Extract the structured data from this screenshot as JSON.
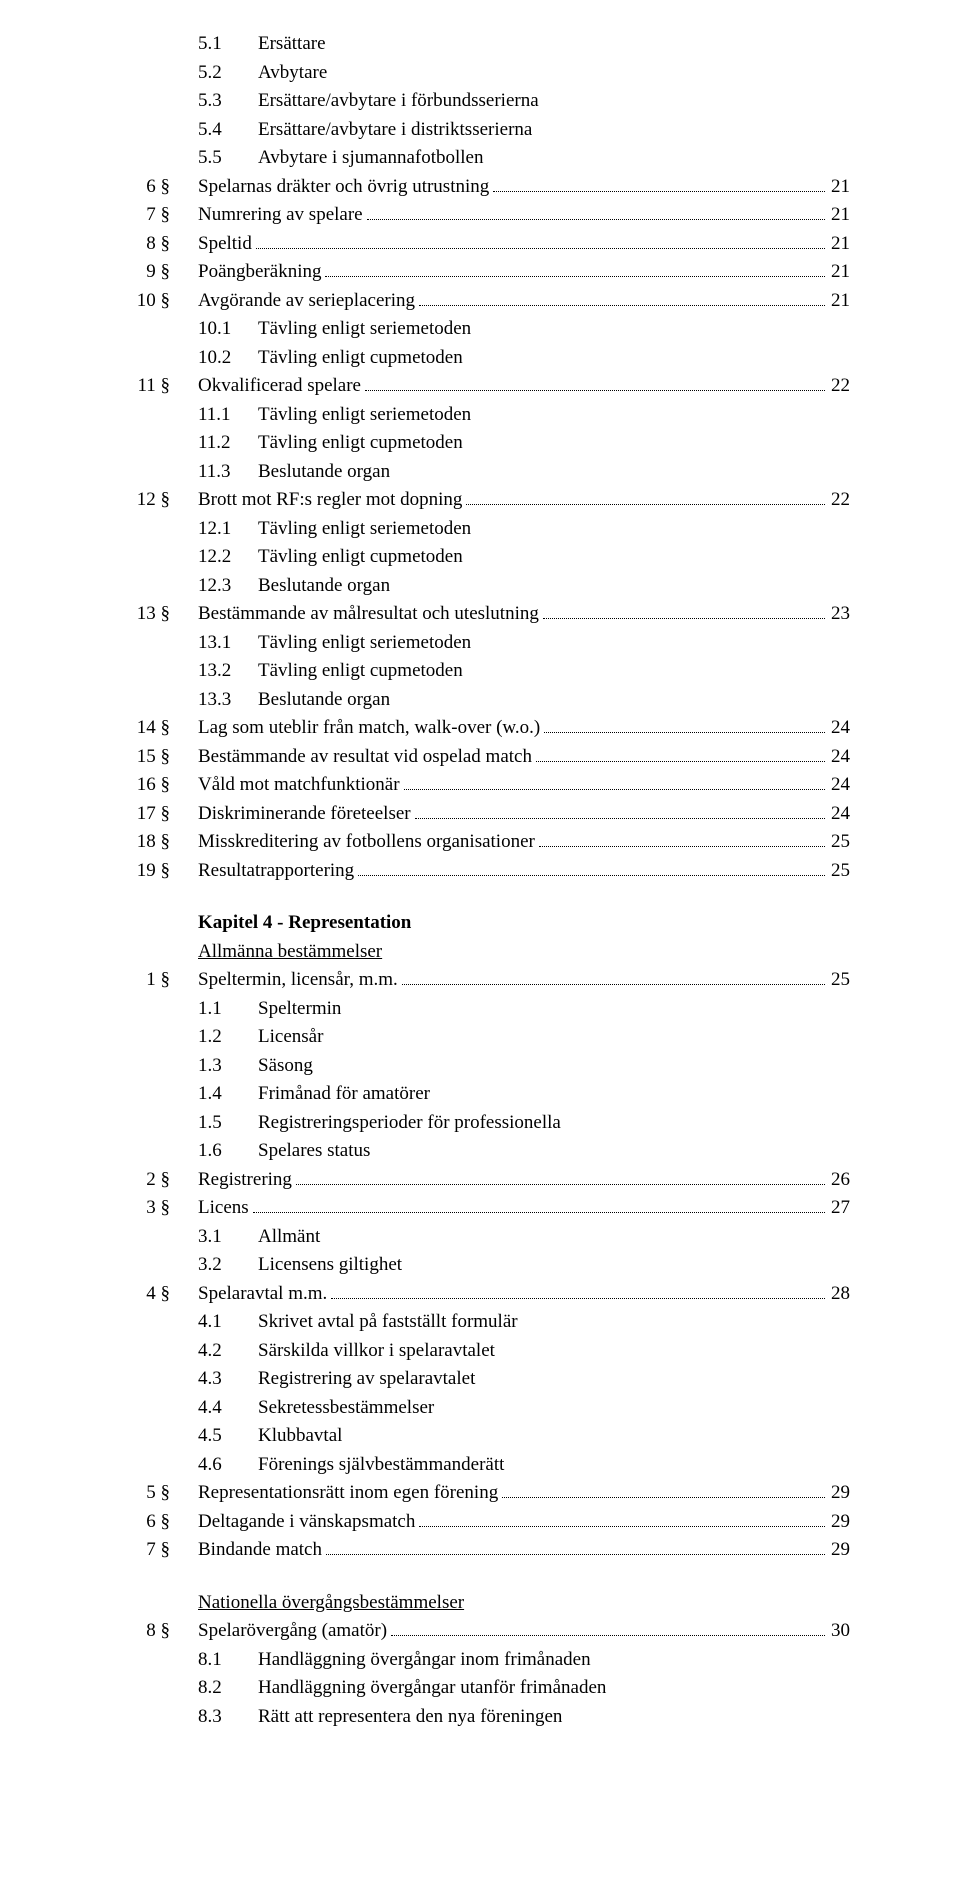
{
  "colors": {
    "text": "#000000",
    "background": "#ffffff",
    "leader": "#000000"
  },
  "font_family": "Palatino Linotype",
  "base_fontsize": 19,
  "line_height": 1.5,
  "block1": {
    "subs": [
      {
        "num": "5.1",
        "title": "Ersättare"
      },
      {
        "num": "5.2",
        "title": "Avbytare"
      },
      {
        "num": "5.3",
        "title": "Ersättare/avbytare i förbundsserierna"
      },
      {
        "num": "5.4",
        "title": "Ersättare/avbytare i distriktsserierna"
      },
      {
        "num": "5.5",
        "title": "Avbytare i sjumannafotbollen"
      }
    ],
    "items": [
      {
        "ref": "6 §",
        "title": "Spelarnas dräkter och övrig utrustning",
        "page": "21"
      },
      {
        "ref": "7 §",
        "title": "Numrering av spelare",
        "page": "21"
      },
      {
        "ref": "8 §",
        "title": "Speltid",
        "page": "21"
      },
      {
        "ref": "9 §",
        "title": "Poängberäkning",
        "page": "21"
      },
      {
        "ref": "10 §",
        "title": "Avgörande av serieplacering",
        "page": "21",
        "subs": [
          {
            "num": "10.1",
            "title": "Tävling enligt seriemetoden"
          },
          {
            "num": "10.2",
            "title": "Tävling enligt cupmetoden"
          }
        ]
      },
      {
        "ref": "11 §",
        "title": "Okvalificerad spelare",
        "page": "22",
        "subs": [
          {
            "num": "11.1",
            "title": "Tävling enligt seriemetoden"
          },
          {
            "num": "11.2",
            "title": "Tävling enligt cupmetoden"
          },
          {
            "num": "11.3",
            "title": "Beslutande organ"
          }
        ]
      },
      {
        "ref": "12 §",
        "title": "Brott mot RF:s regler mot dopning",
        "page": "22",
        "subs": [
          {
            "num": "12.1",
            "title": "Tävling enligt seriemetoden"
          },
          {
            "num": "12.2",
            "title": "Tävling enligt cupmetoden"
          },
          {
            "num": "12.3",
            "title": "Beslutande organ"
          }
        ]
      },
      {
        "ref": "13 §",
        "title": "Bestämmande av målresultat och uteslutning",
        "page": "23",
        "subs": [
          {
            "num": "13.1",
            "title": "Tävling enligt seriemetoden"
          },
          {
            "num": "13.2",
            "title": "Tävling enligt cupmetoden"
          },
          {
            "num": "13.3",
            "title": "Beslutande organ"
          }
        ]
      },
      {
        "ref": "14 §",
        "title": "Lag som uteblir från match, walk-over (w.o.)",
        "page": "24"
      },
      {
        "ref": "15 §",
        "title": "Bestämmande av resultat vid ospelad match",
        "page": "24"
      },
      {
        "ref": "16 §",
        "title": "Våld mot matchfunktionär",
        "page": "24"
      },
      {
        "ref": "17 §",
        "title": "Diskriminerande företeelser",
        "page": "24"
      },
      {
        "ref": "18 §",
        "title": "Misskreditering av fotbollens organisationer",
        "page": "25"
      },
      {
        "ref": "19 §",
        "title": "Resultatrapportering",
        "page": "25"
      }
    ]
  },
  "chapter4": {
    "label": "Kapitel 4 - Representation",
    "heading1": "Allmänna bestämmelser",
    "items1": [
      {
        "ref": "1 §",
        "title": "Speltermin,  licensår, m.m. ",
        "page": "25",
        "subs": [
          {
            "num": "1.1",
            "title": "Speltermin"
          },
          {
            "num": "1.2",
            "title": "Licensår"
          },
          {
            "num": "1.3",
            "title": "Säsong"
          },
          {
            "num": "1.4",
            "title": "Frimånad för amatörer"
          },
          {
            "num": "1.5",
            "title": "Registreringsperioder för professionella"
          },
          {
            "num": "1.6",
            "title": "Spelares status"
          }
        ]
      },
      {
        "ref": "2 §",
        "title": "Registrering",
        "page": "26"
      },
      {
        "ref": "3 §",
        "title": "Licens",
        "page": "27",
        "subs": [
          {
            "num": "3.1",
            "title": "Allmänt"
          },
          {
            "num": "3.2",
            "title": "Licensens giltighet"
          }
        ]
      },
      {
        "ref": "4 §",
        "title": "Spelaravtal m.m.",
        "page": "28",
        "subs": [
          {
            "num": "4.1",
            "title": "Skrivet avtal på fastställt formulär"
          },
          {
            "num": "4.2",
            "title": "Särskilda villkor i spelaravtalet"
          },
          {
            "num": "4.3",
            "title": "Registrering av spelaravtalet"
          },
          {
            "num": "4.4",
            "title": "Sekretessbestämmelser"
          },
          {
            "num": "4.5",
            "title": "Klubbavtal"
          },
          {
            "num": "4.6",
            "title": "Förenings självbestämmanderätt"
          }
        ]
      },
      {
        "ref": "5 §",
        "title": "Representationsrätt inom egen förening",
        "page": "29"
      },
      {
        "ref": "6 §",
        "title": "Deltagande i vänskapsmatch",
        "page": "29"
      },
      {
        "ref": "7 §",
        "title": "Bindande match",
        "page": "29"
      }
    ],
    "heading2": "Nationella övergångsbestämmelser",
    "items2": [
      {
        "ref": "8 §",
        "title": "Spelarövergång (amatör)",
        "page": "30",
        "subs": [
          {
            "num": "8.1",
            "title": "Handläggning övergångar inom frimånaden"
          },
          {
            "num": "8.2",
            "title": "Handläggning övergångar utanför frimånaden"
          },
          {
            "num": "8.3",
            "title": "Rätt att representera den nya föreningen"
          }
        ]
      }
    ]
  }
}
